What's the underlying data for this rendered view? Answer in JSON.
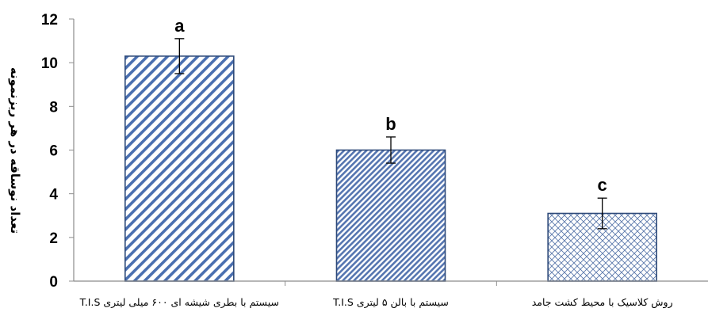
{
  "chart_data": {
    "type": "bar",
    "title": "",
    "xlabel": "",
    "ylabel": "تعداد نوساقه در هر ریزنمونه",
    "ylim": [
      0,
      12
    ],
    "yticks": [
      0,
      2,
      4,
      6,
      8,
      10,
      12
    ],
    "grid": false,
    "legend": "none",
    "categories": [
      "T.I.S سیستم  با بطری شیشه ای ۶۰۰ میلی لیتری",
      "T.I.S سیستم  با بالن ۵ لیتری",
      "روش کلاسیک با محیط کشت جامد"
    ],
    "values": [
      10.3,
      6.0,
      3.1
    ],
    "errors": [
      0.8,
      0.6,
      0.7
    ],
    "significance_letters": [
      "a",
      "b",
      "c"
    ],
    "colors": {
      "bar_stroke": "#2e4a7a",
      "hatch": "#4a6fb0",
      "axis": "#8c8c8c"
    }
  }
}
